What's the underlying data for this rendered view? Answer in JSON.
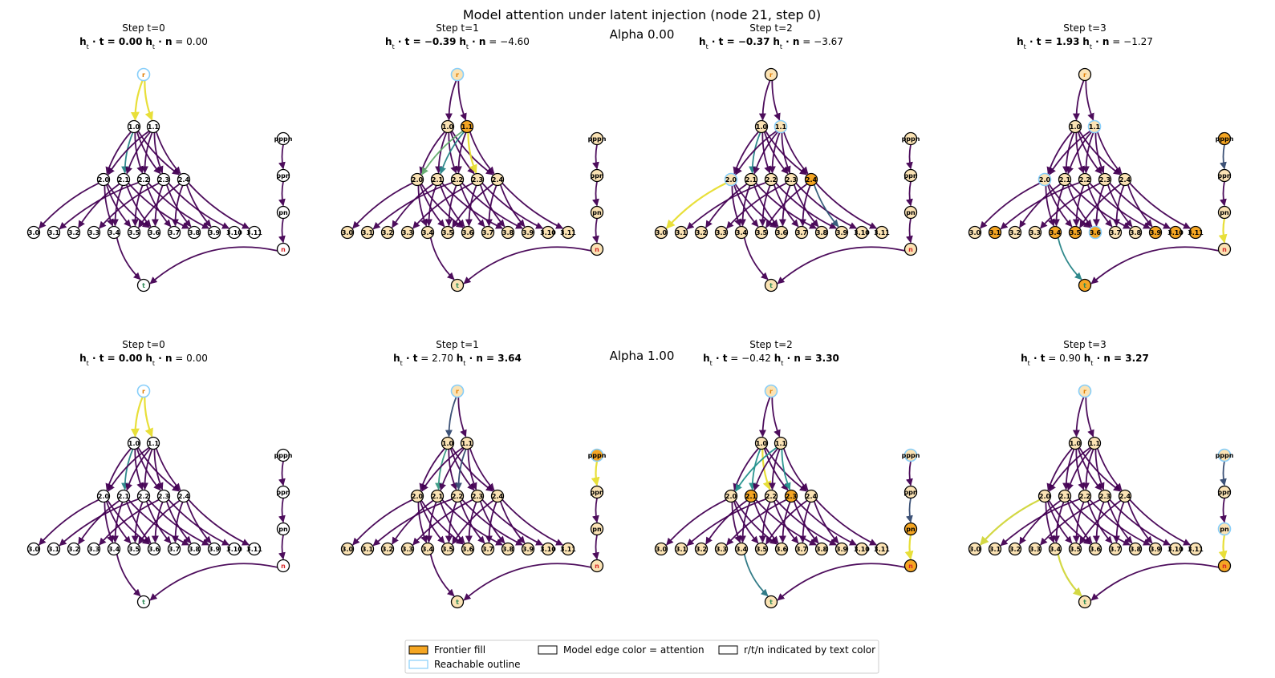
{
  "figure": {
    "title": "Model attention under latent injection (node 21, step 0)",
    "rows": [
      {
        "label": "Alpha 0.00",
        "panels": [
          {
            "step_label": "Step t=0",
            "ht_t": "0.00",
            "ht_n": "0.00",
            "bold": "t",
            "frontier": [],
            "reachable": [
              "r"
            ],
            "fill": "white",
            "attn": {
              "r>1.0": 0.95,
              "r>1.1": 0.95,
              "1.0>2.1": 0.45
            }
          },
          {
            "step_label": "Step t=1",
            "ht_t": "−0.39",
            "ht_n": "−4.60",
            "bold": "t",
            "frontier": [
              "1.1"
            ],
            "reachable": [
              "r"
            ],
            "fill": "pale",
            "attn": {
              "1.1>2.0": 0.65,
              "1.1>2.1": 0.45,
              "1.1>2.3": 0.95
            }
          },
          {
            "step_label": "Step t=2",
            "ht_t": "−0.37",
            "ht_n": "−3.67",
            "bold": "t",
            "frontier": [
              "2.4"
            ],
            "reachable": [
              "1.1",
              "2.0"
            ],
            "fill": "pale",
            "attn": {
              "1.0>2.1": 0.45,
              "2.0>3.0": 0.95,
              "2.1>3.5": 0.45,
              "2.2>3.4": 0.25,
              "2.4>3.9": 0.3
            }
          },
          {
            "step_label": "Step t=3",
            "ht_t": "1.93",
            "ht_n": "−1.27",
            "bold": "t",
            "frontier": [
              "3.1",
              "3.4",
              "3.5",
              "3.6",
              "3.9",
              "3.10",
              "3.11",
              "pppn",
              "t"
            ],
            "reachable": [
              "1.1",
              "2.0",
              "3.6"
            ],
            "fill": "pale",
            "attn": {
              "pppn>ppn": 0.25,
              "pn>n": 0.95,
              "3.4>t": 0.45
            }
          }
        ]
      },
      {
        "label": "Alpha 1.00",
        "panels": [
          {
            "step_label": "Step t=0",
            "ht_t": "0.00",
            "ht_n": "0.00",
            "bold": "t",
            "frontier": [],
            "reachable": [
              "r"
            ],
            "fill": "white",
            "attn": {
              "r>1.0": 0.95,
              "r>1.1": 0.95,
              "1.0>2.1": 0.45
            }
          },
          {
            "step_label": "Step t=1",
            "ht_t": "2.70",
            "ht_n": "3.64",
            "bold": "n",
            "frontier": [
              "pppn"
            ],
            "reachable": [
              "r",
              "pppn"
            ],
            "fill": "pale",
            "attn": {
              "r>1.0": 0.25,
              "1.0>2.1": 0.55,
              "1.1>2.2": 0.25,
              "pppn>ppn": 0.95
            }
          },
          {
            "step_label": "Step t=2",
            "ht_t": "−0.42",
            "ht_n": "3.30",
            "bold": "n",
            "frontier": [
              "2.1",
              "2.3",
              "pn",
              "n"
            ],
            "reachable": [
              "r",
              "pppn"
            ],
            "fill": "pale",
            "attn": {
              "1.0>2.1": 0.5,
              "1.0>2.2": 0.95,
              "1.1>2.0": 0.5,
              "1.1>2.3": 0.5,
              "2.0>3.1": 0.65,
              "ppn>pn": 0.25,
              "pn>n": 0.95,
              "3.4>t": 0.4
            }
          },
          {
            "step_label": "Step t=3",
            "ht_t": "0.90",
            "ht_n": "3.27",
            "bold": "n",
            "frontier": [
              "n"
            ],
            "reachable": [
              "r",
              "pppn",
              "pn"
            ],
            "fill": "pale",
            "attn": {
              "2.0>3.0": 0.9,
              "2.2>3.6": 0.45,
              "pppn>ppn": 0.25,
              "pn>n": 0.95,
              "3.4>t": 0.9
            }
          }
        ]
      }
    ],
    "legend": [
      {
        "swatch": "frontier",
        "label": "Frontier fill"
      },
      {
        "swatch": "plain",
        "label": "Model edge color = attention"
      },
      {
        "swatch": "plain",
        "label": "r/t/n indicated by text color"
      },
      {
        "swatch": "reachable",
        "label": "Reachable outline"
      }
    ],
    "colors": {
      "frontier": "#f5a623",
      "pale_fill": "#fbe3b4",
      "reachable": "#87cefa",
      "node_stroke": "#000000",
      "r_text": "#e07b00",
      "t_text": "#2e8b57",
      "n_text": "#d62728",
      "viridis_low": "#440154",
      "viridis_mid": "#21918c",
      "viridis_high": "#fde725"
    }
  }
}
